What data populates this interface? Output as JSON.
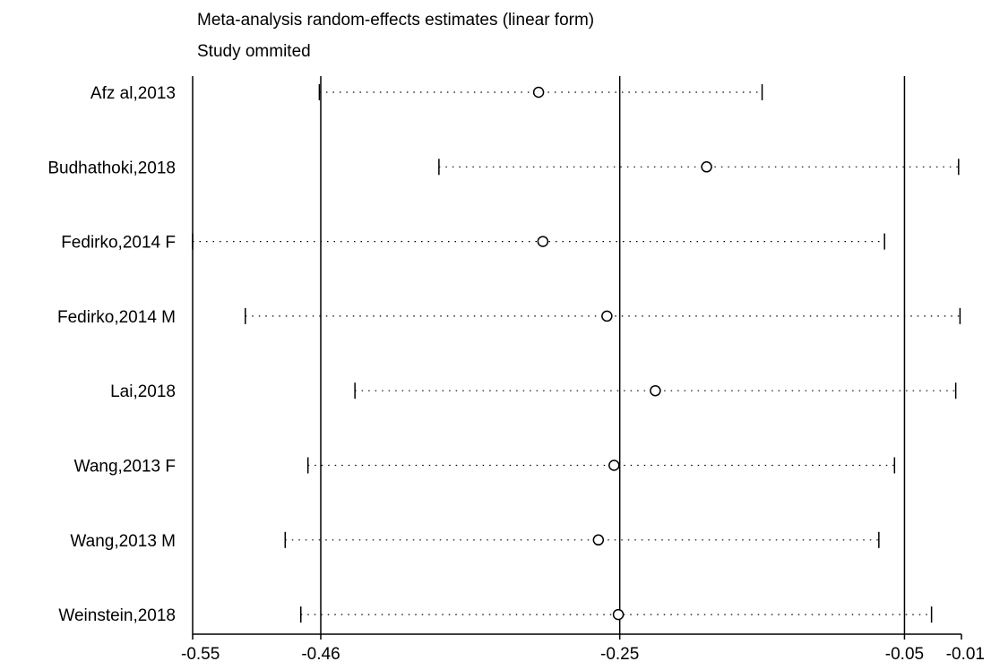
{
  "chart_data": {
    "type": "forest",
    "title": "Meta-analysis random-effects estimates (linear form)",
    "subtitle": "Study ommited",
    "xlabel": "",
    "ylabel": "",
    "xlim": [
      -0.55,
      -0.01
    ],
    "x_ticks": [
      -0.55,
      -0.46,
      -0.25,
      -0.05,
      -0.01
    ],
    "x_tick_labels": [
      "-0.55",
      "-0.46",
      "-0.25",
      "-0.05",
      "-0.01"
    ],
    "reference_lines": [
      -0.46,
      -0.25,
      -0.05
    ],
    "grid": false,
    "studies": [
      {
        "label": "Afz al,2013",
        "estimate": -0.307,
        "ci_low": -0.461,
        "ci_high": -0.15
      },
      {
        "label": "Budhathoki,2018",
        "estimate": -0.189,
        "ci_low": -0.377,
        "ci_high": -0.012
      },
      {
        "label": "Fedirko,2014 F",
        "estimate": -0.304,
        "ci_low": -0.55,
        "ci_high": -0.064
      },
      {
        "label": "Fedirko,2014 M",
        "estimate": -0.259,
        "ci_low": -0.513,
        "ci_high": -0.011
      },
      {
        "label": "Lai,2018",
        "estimate": -0.225,
        "ci_low": -0.436,
        "ci_high": -0.014
      },
      {
        "label": "Wang,2013 F",
        "estimate": -0.254,
        "ci_low": -0.469,
        "ci_high": -0.057
      },
      {
        "label": "Wang,2013 M",
        "estimate": -0.265,
        "ci_low": -0.485,
        "ci_high": -0.068
      },
      {
        "label": "Weinstein,2018",
        "estimate": -0.251,
        "ci_low": -0.474,
        "ci_high": -0.031
      }
    ]
  }
}
